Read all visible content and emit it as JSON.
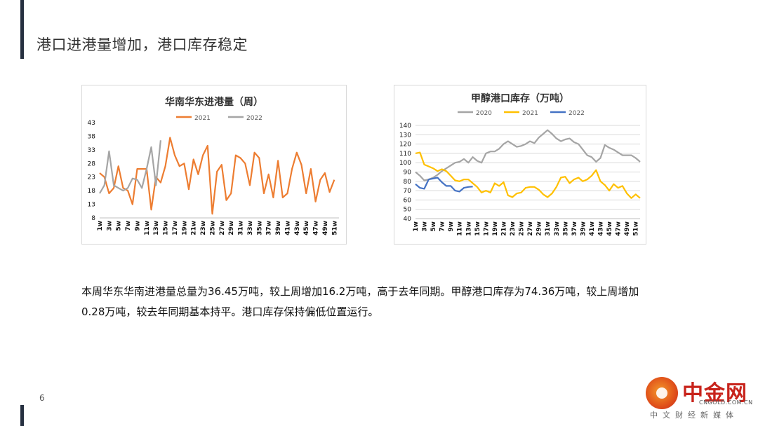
{
  "slide": {
    "title": "港口进港量增加，港口库存稳定",
    "page_number": "6",
    "body_line1": "本周华东华南进港量总量为36.45万吨，较上周增加16.2万吨，高于去年同期。甲醇港口库存为74.36万吨，较上周增加",
    "body_line2": "0.28万吨，较去年同期基本持平。港口库存保持偏低位置运行。"
  },
  "logo": {
    "name": "中金网",
    "domain": "CNGOLD.COM.CN",
    "tagline": "中文财经新媒体"
  },
  "chart_data": [
    {
      "type": "line",
      "title": "华南华东进港量（周）",
      "x_tick_labels": [
        "1w",
        "3w",
        "5w",
        "7w",
        "9w",
        "11w",
        "13w",
        "15w",
        "17w",
        "19w",
        "21w",
        "23w",
        "25w",
        "27w",
        "29w",
        "31w",
        "33w",
        "35w",
        "37w",
        "39w",
        "41w",
        "43w",
        "45w",
        "47w",
        "49w",
        "51w"
      ],
      "y_ticks": [
        8,
        13,
        18,
        23,
        28,
        33,
        38,
        43
      ],
      "ylim": [
        8,
        43
      ],
      "x_count": 52,
      "legend_position": "top",
      "grid": false,
      "series": [
        {
          "name": "2021",
          "color": "#ED7D31",
          "values": [
            24.5,
            23,
            17,
            19,
            27,
            19,
            18,
            13,
            26,
            26,
            26,
            11,
            23,
            21,
            27,
            37.5,
            31,
            27,
            28,
            18.5,
            29.5,
            24,
            31,
            34.5,
            9.5,
            25,
            27.5,
            14.5,
            17,
            31,
            30,
            28,
            20,
            32,
            30,
            17,
            24,
            15.5,
            29,
            15.5,
            17,
            26,
            32,
            27.5,
            17,
            26,
            14,
            22,
            24.5,
            17.5,
            22
          ]
        },
        {
          "name": "2022",
          "color": "#A5A5A5",
          "values": [
            17,
            20,
            32.5,
            20,
            19,
            18,
            19,
            22.5,
            22,
            19,
            26,
            34,
            20,
            36.5
          ]
        }
      ]
    },
    {
      "type": "line",
      "title": "甲醇港口库存（万吨）",
      "x_tick_labels": [
        "1w",
        "3w",
        "5w",
        "7w",
        "9w",
        "11w",
        "13w",
        "15w",
        "17w",
        "19w",
        "21w",
        "23w",
        "25w",
        "27w",
        "29w",
        "31w",
        "33w",
        "35w",
        "37w",
        "39w",
        "41w",
        "43w",
        "45w",
        "47w",
        "49w",
        "51w"
      ],
      "y_ticks": [
        40,
        50,
        60,
        70,
        80,
        90,
        100,
        110,
        120,
        130,
        140
      ],
      "ylim": [
        40,
        140
      ],
      "x_count": 52,
      "legend_position": "top",
      "grid": true,
      "series": [
        {
          "name": "2020",
          "color": "#A5A5A5",
          "values": [
            90,
            86,
            81,
            82,
            84,
            87,
            91,
            94,
            97,
            100,
            101,
            104,
            100,
            106,
            102,
            100,
            110,
            112,
            112,
            115,
            120,
            123,
            120,
            117,
            118,
            120,
            123,
            121,
            127,
            131,
            135,
            131,
            126,
            123,
            125,
            126,
            122,
            120,
            114,
            108,
            106,
            101,
            105,
            119,
            116,
            114,
            111,
            108,
            108,
            108,
            105,
            101
          ]
        },
        {
          "name": "2021",
          "color": "#FFC000",
          "values": [
            110,
            111,
            98,
            96,
            94,
            91,
            93,
            91,
            86,
            81,
            80,
            82,
            82,
            78,
            74,
            68,
            70,
            68,
            78,
            75,
            79,
            65,
            63,
            67,
            68,
            73,
            74,
            74,
            71,
            66,
            63,
            67,
            74,
            84,
            85,
            78,
            82,
            84,
            80,
            82,
            86,
            92,
            80,
            76,
            70,
            77,
            73,
            75,
            67,
            62,
            66,
            62
          ]
        },
        {
          "name": "2022",
          "color": "#4472C4",
          "values": [
            77,
            73,
            72,
            82,
            83,
            84,
            79,
            75,
            75,
            70,
            69,
            73,
            74,
            74.36
          ]
        }
      ]
    }
  ]
}
